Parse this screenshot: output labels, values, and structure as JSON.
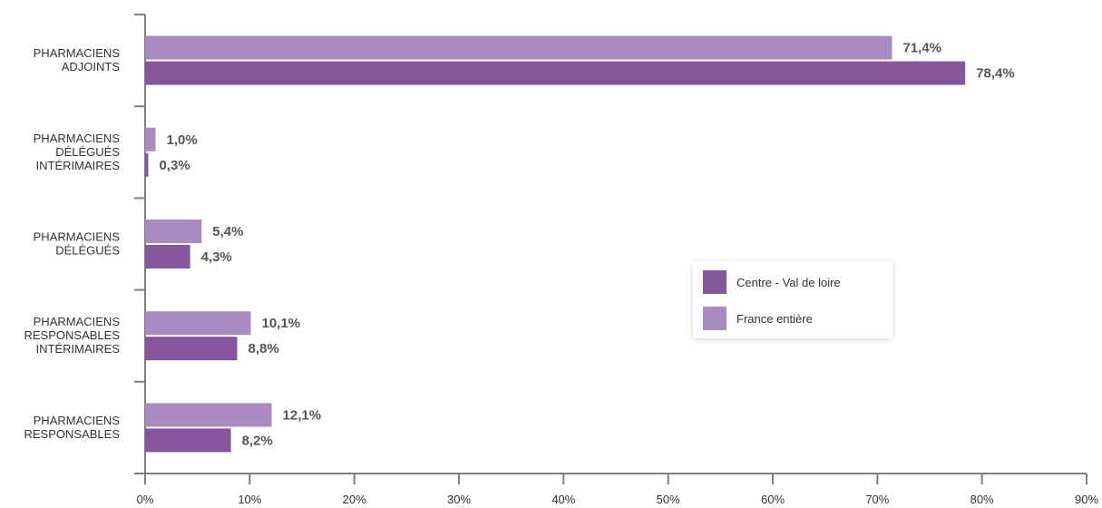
{
  "chart_data": {
    "type": "bar",
    "orientation": "horizontal",
    "categories": [
      [
        "PHARMACIENS",
        "ADJOINTS"
      ],
      [
        "PHARMACIENS",
        "DÉLÉGUÉS",
        "INTÉRIMAIRES"
      ],
      [
        "PHARMACIENS",
        "DÉLÉGUÉS"
      ],
      [
        "PHARMACIENS",
        "RESPONSABLES",
        "INTÉRIMAIRES"
      ],
      [
        "PHARMACIENS",
        "RESPONSABLES"
      ]
    ],
    "series": [
      {
        "name": "France entière",
        "color": "#a98bc1",
        "values": [
          71.4,
          1.0,
          5.4,
          10.1,
          12.1
        ],
        "labels": [
          "71,4%",
          "1,0%",
          "5,4%",
          "10,1%",
          "12,1%"
        ]
      },
      {
        "name": "Centre - Val de loire",
        "color": "#85569e",
        "values": [
          78.4,
          0.3,
          4.3,
          8.8,
          8.2
        ],
        "labels": [
          "78,4%",
          "0,3%",
          "4,3%",
          "8,8%",
          "8,2%"
        ]
      }
    ],
    "xlim": [
      0,
      90
    ],
    "xticks": [
      "0%",
      "10%",
      "20%",
      "30%",
      "40%",
      "50%",
      "60%",
      "70%",
      "80%",
      "90%"
    ],
    "grid": false,
    "legend_position": "center-right"
  },
  "legend": {
    "items": [
      {
        "label": "Centre - Val de loire",
        "color": "#85569e"
      },
      {
        "label": "France entière",
        "color": "#a98bc1"
      }
    ]
  }
}
